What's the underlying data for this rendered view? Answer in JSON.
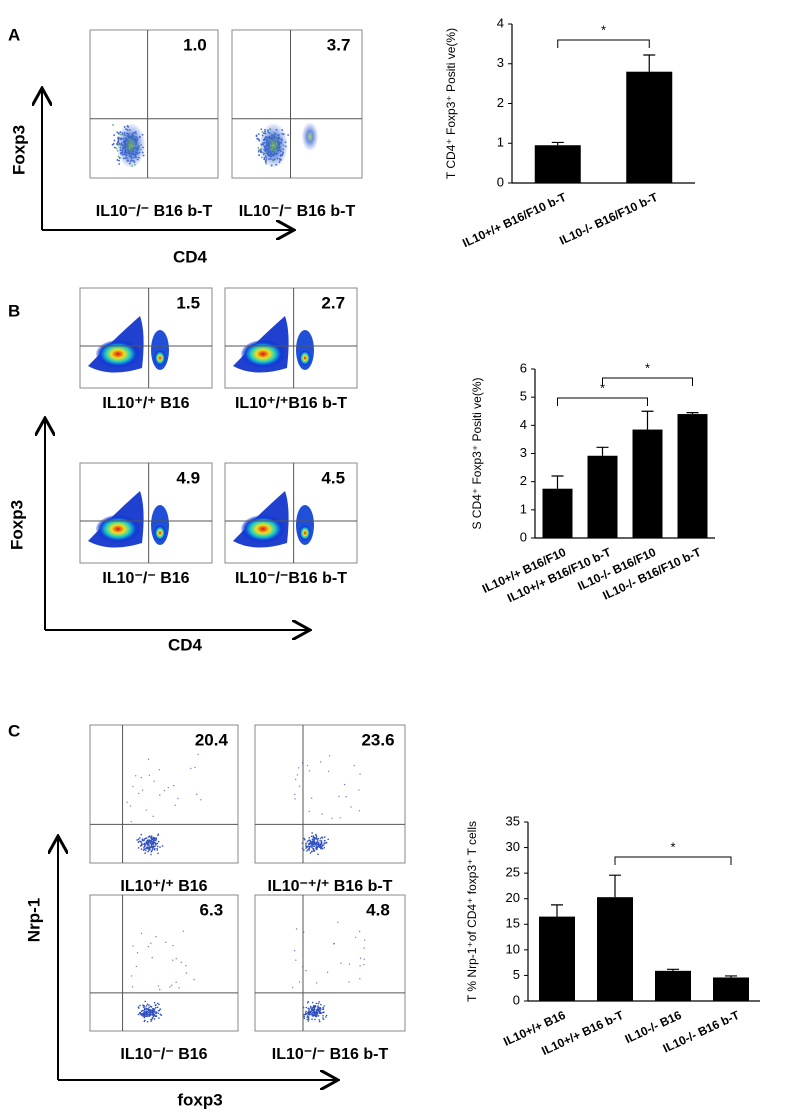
{
  "panels": [
    {
      "label": "A",
      "y_axis": "Foxp3",
      "x_axis": "CD4",
      "plots": [
        {
          "value": "1.0",
          "caption": "IL10⁻/⁻ B16 b-T"
        },
        {
          "value": "3.7",
          "caption": "IL10⁻/⁻ B16 b-T"
        }
      ]
    },
    {
      "label": "B",
      "y_axis": "Foxp3",
      "x_axis": "CD4",
      "plots": [
        {
          "value": "1.5",
          "caption": "IL10⁺/⁺ B16"
        },
        {
          "value": "2.7",
          "caption": "IL10⁺/⁺B16 b-T"
        },
        {
          "value": "4.9",
          "caption": "IL10⁻/⁻ B16"
        },
        {
          "value": "4.5",
          "caption": "IL10⁻/⁻B16 b-T"
        }
      ]
    },
    {
      "label": "C",
      "y_axis": "Nrp-1",
      "x_axis": "foxp3",
      "plots": [
        {
          "value": "20.4",
          "caption": "IL10⁺/⁺ B16"
        },
        {
          "value": "23.6",
          "caption": "IL10⁻⁺/⁺ B16 b-T"
        },
        {
          "value": "6.3",
          "caption": "IL10⁻/⁻ B16"
        },
        {
          "value": "4.8",
          "caption": "IL10⁻/⁻ B16 b-T"
        }
      ]
    }
  ],
  "chart_data": [
    {
      "type": "bar",
      "y_label": "T CD4⁺ Foxp3⁺ Positi ve(%)",
      "categories": [
        "IL10+/+ B16/F10 b-T",
        "IL10-/- B16/F10 b-T"
      ],
      "values": [
        0.95,
        2.8
      ],
      "errors": [
        0.07,
        0.42
      ],
      "color": "#000000",
      "ylim": [
        0,
        4
      ],
      "yticks": [
        0,
        1,
        2,
        3,
        4
      ],
      "annotations": [
        "*"
      ]
    },
    {
      "type": "bar",
      "y_label": "S CD4⁺ Foxp3⁺ Positi ve(%)",
      "categories": [
        "IL10+/+ B16/F10",
        "IL10+/+ B16/F10 b-T",
        "IL10-/- B16/F10",
        "IL10-/- B16/F10 b-T"
      ],
      "values": [
        1.75,
        2.92,
        3.85,
        4.4
      ],
      "errors": [
        0.45,
        0.3,
        0.65,
        0.05
      ],
      "color": "#000000",
      "ylim": [
        0,
        6
      ],
      "yticks": [
        0,
        1,
        2,
        3,
        4,
        5,
        6
      ],
      "annotations": [
        "*",
        "*"
      ]
    },
    {
      "type": "bar",
      "y_label": "T % Nrp-1⁺of CD4⁺ foxp3⁺ T cells",
      "categories": [
        "IL10+/+ B16",
        "IL10+/+ B16 b-T",
        "IL10-/- B16",
        "IL10-/- B16 b-T"
      ],
      "values": [
        16.5,
        20.3,
        5.9,
        4.6
      ],
      "errors": [
        2.3,
        4.3,
        0.3,
        0.3
      ],
      "color": "#000000",
      "ylim": [
        0,
        35
      ],
      "yticks": [
        0,
        5,
        10,
        15,
        20,
        25,
        30,
        35
      ],
      "annotations": [
        "*"
      ]
    }
  ]
}
